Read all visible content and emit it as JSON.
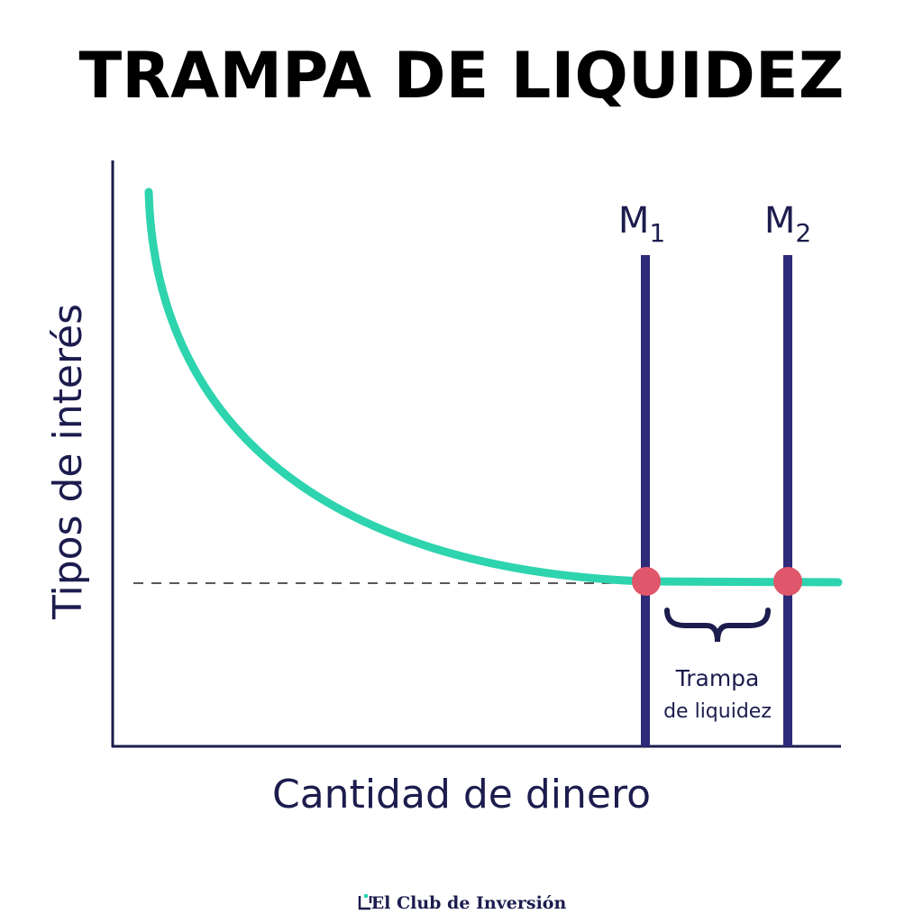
{
  "header": {
    "title": "TRAMPA DE LIQUIDEZ"
  },
  "axes": {
    "y_label": "Tipos de interés",
    "x_label": "Cantidad de dinero"
  },
  "lines": [
    {
      "letter": "M",
      "subscript": "1"
    },
    {
      "letter": "M",
      "subscript": "2"
    }
  ],
  "annotation": {
    "lines": [
      "Trampa",
      "de liquidez"
    ]
  },
  "footer": {
    "brand": "El Club de Inversión"
  }
}
